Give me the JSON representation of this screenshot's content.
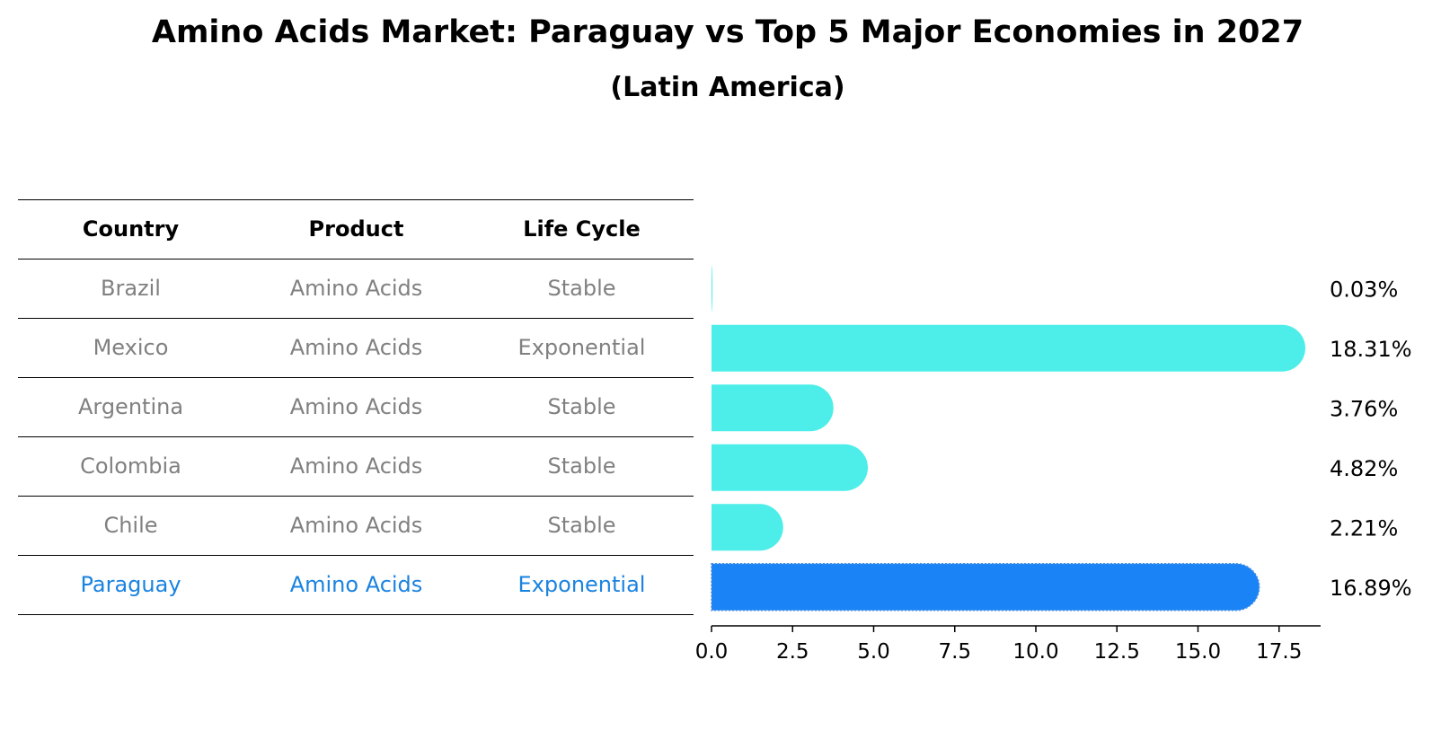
{
  "title": "Amino Acids Market: Paraguay vs Top 5 Major Economies in 2027",
  "subtitle": "(Latin America)",
  "table": {
    "headers": [
      "Country",
      "Product",
      "Life Cycle"
    ],
    "rows": [
      [
        "Brazil",
        "Amino Acids",
        "Stable"
      ],
      [
        "Mexico",
        "Amino Acids",
        "Exponential"
      ],
      [
        "Argentina",
        "Amino Acids",
        "Stable"
      ],
      [
        "Colombia",
        "Amino Acids",
        "Stable"
      ],
      [
        "Chile",
        "Amino Acids",
        "Stable"
      ],
      [
        "Paraguay",
        "Amino Acids",
        "Exponential"
      ]
    ],
    "highlight_row": 5
  },
  "colors": {
    "bar": "#4deee9",
    "highlight_bar": "#1a83f5",
    "muted_text": "#808080",
    "highlight_text": "#1a83e0"
  },
  "chart_data": {
    "type": "bar",
    "orientation": "horizontal",
    "categories": [
      "Brazil",
      "Mexico",
      "Argentina",
      "Colombia",
      "Chile",
      "Paraguay"
    ],
    "values": [
      0.03,
      18.31,
      3.76,
      4.82,
      2.21,
      16.89
    ],
    "value_labels": [
      "0.03%",
      "18.31%",
      "3.76%",
      "4.82%",
      "2.21%",
      "16.89%"
    ],
    "highlight_index": 5,
    "xlim": [
      0,
      19.2
    ],
    "xticks": [
      0.0,
      2.5,
      5.0,
      7.5,
      10.0,
      12.5,
      15.0,
      17.5
    ],
    "xtick_labels": [
      "0.0",
      "2.5",
      "5.0",
      "7.5",
      "10.0",
      "12.5",
      "15.0",
      "17.5"
    ],
    "grid": false
  }
}
